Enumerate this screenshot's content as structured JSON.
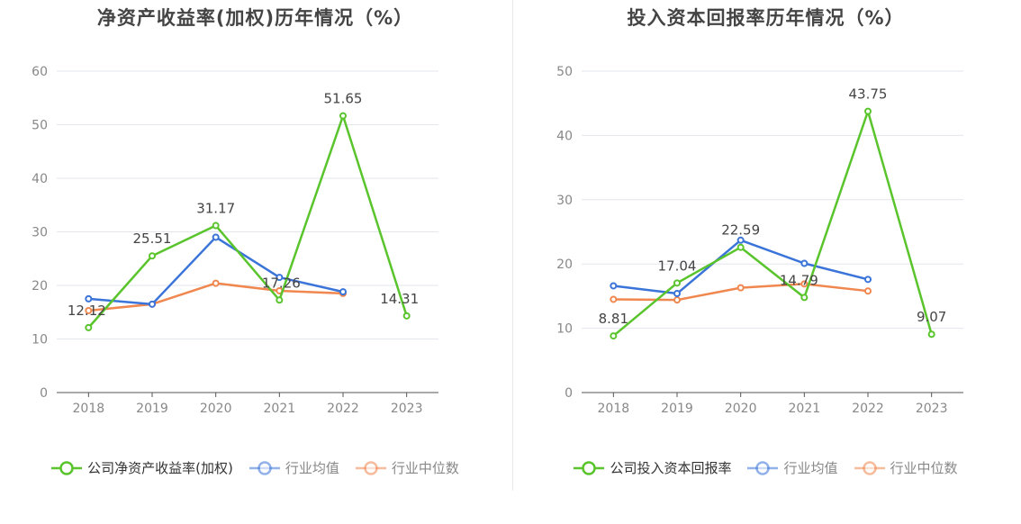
{
  "chart_data": [
    {
      "type": "line",
      "title": "净资产收益率(加权)历年情况（%）",
      "categories": [
        "2018",
        "2019",
        "2020",
        "2021",
        "2022",
        "2023"
      ],
      "ylim": [
        0,
        60
      ],
      "yticks": [
        "0",
        "10",
        "20",
        "30",
        "40",
        "50",
        "60"
      ],
      "series": [
        {
          "name": "公司净资产收益率(加权)",
          "color": "#5ac42d",
          "values": [
            12.12,
            25.51,
            31.17,
            17.26,
            51.65,
            14.31
          ],
          "labels": [
            "12.12",
            "25.51",
            "31.17",
            "17.26",
            "51.65",
            "14.31"
          ]
        },
        {
          "name": "行业均值",
          "color": "#3b74d9",
          "values": [
            17.5,
            16.5,
            29.0,
            21.5,
            18.8,
            null
          ]
        },
        {
          "name": "行业中位数",
          "color": "#f0874f",
          "values": [
            15.3,
            16.5,
            20.4,
            19.0,
            18.5,
            null
          ]
        }
      ],
      "legend": "bottom",
      "grid": true
    },
    {
      "type": "line",
      "title": "投入资本回报率历年情况（%）",
      "categories": [
        "2018",
        "2019",
        "2020",
        "2021",
        "2022",
        "2023"
      ],
      "ylim": [
        0,
        50
      ],
      "yticks": [
        "0",
        "10",
        "20",
        "30",
        "40",
        "50"
      ],
      "series": [
        {
          "name": "公司投入资本回报率",
          "color": "#5ac42d",
          "values": [
            8.81,
            17.04,
            22.59,
            14.79,
            43.75,
            9.07
          ],
          "labels": [
            "8.81",
            "17.04",
            "22.59",
            "14.79",
            "43.75",
            "9.07"
          ]
        },
        {
          "name": "行业均值",
          "color": "#3b74d9",
          "values": [
            16.6,
            15.4,
            23.7,
            20.1,
            17.6,
            null
          ]
        },
        {
          "name": "行业中位数",
          "color": "#f0874f",
          "values": [
            14.5,
            14.4,
            16.3,
            16.9,
            15.8,
            null
          ]
        }
      ],
      "legend": "bottom",
      "grid": true
    }
  ]
}
